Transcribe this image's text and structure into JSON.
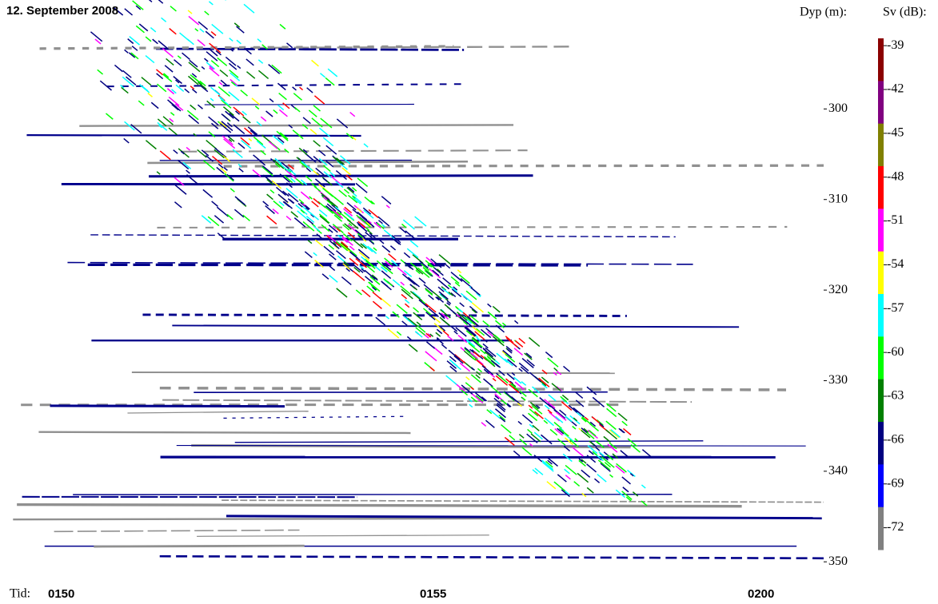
{
  "chart_data": {
    "type": "echogram",
    "title": "12. September 2008",
    "ylabel": "Dyp (m):",
    "ylim": [
      291.5,
      350.6
    ],
    "yticks": [
      300,
      310,
      320,
      330,
      340,
      350
    ],
    "xlabel": "Tid:",
    "x_tick_labels": [
      "0150",
      "0155",
      "0200"
    ],
    "colorbar": {
      "label": "Sv (dB):",
      "lim": [
        -38.5,
        -73.5
      ],
      "ticks": [
        -39,
        -42,
        -45,
        -48,
        -51,
        -54,
        -57,
        -60,
        -63,
        -66,
        -69,
        -72
      ],
      "colors": [
        "#8b0000",
        "#800080",
        "#808000",
        "#ff0000",
        "#ff00ff",
        "#ffff00",
        "#00ffff",
        "#00ff00",
        "#008000",
        "#000080",
        "#0000ff",
        "#808080"
      ]
    }
  }
}
